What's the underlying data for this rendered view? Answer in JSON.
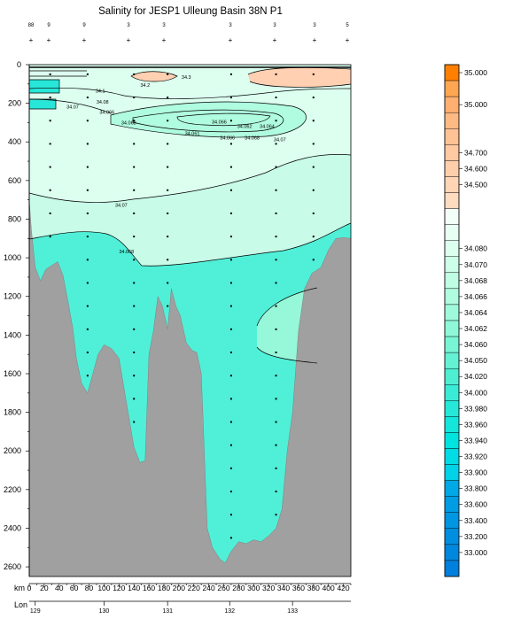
{
  "chart_data": {
    "type": "heatmap",
    "title": "Salinity for JESP1 Ulleung Basin 38N P1",
    "xlabel": "km",
    "x_axis": {
      "range": [
        0,
        430
      ],
      "ticks": [
        0,
        20,
        40,
        60,
        80,
        100,
        120,
        140,
        160,
        180,
        200,
        220,
        240,
        260,
        280,
        300,
        320,
        340,
        360,
        380,
        400,
        420
      ]
    },
    "y_axis": {
      "range": [
        0,
        2650
      ],
      "ticks": [
        0,
        200,
        400,
        600,
        800,
        1000,
        1200,
        1400,
        1600,
        1800,
        2000,
        2200,
        2400,
        2600
      ]
    },
    "lon_axis": {
      "label": "Lon",
      "ticks": [
        "129",
        "130",
        "131",
        "132",
        "133"
      ]
    },
    "station_row1_labels": [
      "88",
      "9",
      "9",
      "3",
      "3",
      "3",
      "3",
      "3",
      "5"
    ],
    "contour_labels": [
      {
        "text": "34.3",
        "x": 210,
        "y": 65
      },
      {
        "text": "34.2",
        "x": 155,
        "y": 105
      },
      {
        "text": "34.1",
        "x": 95,
        "y": 135
      },
      {
        "text": "34.08",
        "x": 98,
        "y": 192
      },
      {
        "text": "34.07",
        "x": 58,
        "y": 218
      },
      {
        "text": "34.066",
        "x": 104,
        "y": 246
      },
      {
        "text": "34.068",
        "x": 133,
        "y": 300
      },
      {
        "text": "34.066",
        "x": 254,
        "y": 296
      },
      {
        "text": "34.062",
        "x": 288,
        "y": 318
      },
      {
        "text": "34.064",
        "x": 318,
        "y": 318
      },
      {
        "text": "34.061",
        "x": 218,
        "y": 355
      },
      {
        "text": "34.066",
        "x": 265,
        "y": 378
      },
      {
        "text": "34.068",
        "x": 298,
        "y": 378
      },
      {
        "text": "34.07",
        "x": 335,
        "y": 388
      },
      {
        "text": "34.07",
        "x": 123,
        "y": 727
      },
      {
        "text": "34.068",
        "x": 130,
        "y": 968
      }
    ],
    "colorbar": [
      {
        "color": "#ff8000",
        "label": "35.000"
      },
      {
        "color": "#ffa652",
        "label": ""
      },
      {
        "color": "#ffb070",
        "label": "35.000"
      },
      {
        "color": "#ffba84",
        "label": ""
      },
      {
        "color": "#ffc294",
        "label": ""
      },
      {
        "color": "#ffc9a1",
        "label": "34.700"
      },
      {
        "color": "#ffceaa",
        "label": "34.600"
      },
      {
        "color": "#ffd5b5",
        "label": "34.500"
      },
      {
        "color": "#ffdcc0",
        "label": ""
      },
      {
        "color": "#f2fff9",
        "label": ""
      },
      {
        "color": "#e8fff4",
        "label": ""
      },
      {
        "color": "#dcfff0",
        "label": "34.080"
      },
      {
        "color": "#cdfeea",
        "label": "34.070"
      },
      {
        "color": "#bffde4",
        "label": "34.068"
      },
      {
        "color": "#b0fce0",
        "label": "34.066"
      },
      {
        "color": "#9ffadb",
        "label": "34.064"
      },
      {
        "color": "#8ef8d8",
        "label": "34.062"
      },
      {
        "color": "#78f5d5",
        "label": "34.060"
      },
      {
        "color": "#64f1d4",
        "label": "34.050"
      },
      {
        "color": "#4eeed3",
        "label": "34.020"
      },
      {
        "color": "#3aebd5",
        "label": "34.000"
      },
      {
        "color": "#26e8d8",
        "label": "33.980"
      },
      {
        "color": "#14e6dc",
        "label": "33.960"
      },
      {
        "color": "#00e4e0",
        "label": "33.940"
      },
      {
        "color": "#00dce6",
        "label": "33.920"
      },
      {
        "color": "#00d2e8",
        "label": "33.900"
      },
      {
        "color": "#00a8e6",
        "label": "33.800"
      },
      {
        "color": "#009ce4",
        "label": "33.600"
      },
      {
        "color": "#0096e2",
        "label": "33.400"
      },
      {
        "color": "#008fe0",
        "label": "33.200"
      },
      {
        "color": "#0088de",
        "label": "33.000"
      },
      {
        "color": "#0080dc",
        "label": ""
      }
    ],
    "colors": {
      "bottom": "#a0a0a0",
      "sea": "#c8fbe8",
      "deep": "#50f0d8",
      "mid": "#96f8d8",
      "high": "#ffd0b2",
      "core": "#28e6d8"
    }
  }
}
